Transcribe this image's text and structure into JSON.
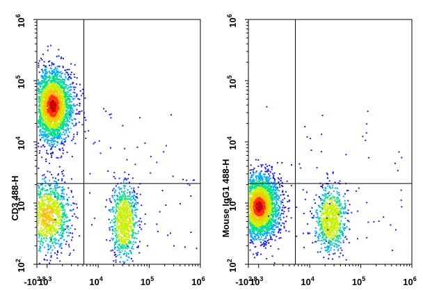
{
  "chart_data": [
    {
      "type": "scatter",
      "plot_style": "flow-cytometry density dot plot",
      "xlabel": "",
      "ylabel": "CD3 488-H",
      "x_axis": {
        "scale": "log",
        "range_log10": [
          2.8,
          6.0
        ],
        "ticks": [
          {
            "v": 2.8,
            "base": "-10",
            "exp": "2.8"
          },
          {
            "v": 3,
            "base": "10",
            "exp": "3"
          },
          {
            "v": 4,
            "base": "10",
            "exp": "4"
          },
          {
            "v": 5,
            "base": "10",
            "exp": "5"
          },
          {
            "v": 6,
            "base": "10",
            "exp": "6"
          }
        ]
      },
      "y_axis": {
        "scale": "log",
        "range_log10": [
          2.0,
          6.0
        ],
        "ticks": [
          {
            "v": 2,
            "base": "10",
            "exp": "2"
          },
          {
            "v": 3,
            "base": "10",
            "exp": "3"
          },
          {
            "v": 4,
            "base": "10",
            "exp": "4"
          },
          {
            "v": 5,
            "base": "10",
            "exp": "5"
          },
          {
            "v": 6,
            "base": "10",
            "exp": "6"
          }
        ]
      },
      "gates": {
        "x_log10": 3.72,
        "y_log10": 3.32
      },
      "populations": [
        {
          "quadrant": "upper-left",
          "center_log10": [
            3.1,
            4.6
          ],
          "spread_log10": [
            0.2,
            0.3
          ],
          "relative_size": 1.0
        },
        {
          "quadrant": "lower-left",
          "center_log10": [
            3.0,
            2.8
          ],
          "spread_log10": [
            0.22,
            0.28
          ],
          "relative_size": 0.42
        },
        {
          "quadrant": "lower-right",
          "center_log10": [
            4.5,
            2.7
          ],
          "spread_log10": [
            0.13,
            0.3
          ],
          "relative_size": 0.3
        }
      ]
    },
    {
      "type": "scatter",
      "plot_style": "flow-cytometry density dot plot",
      "xlabel": "",
      "ylabel": "Mouse IgG1 488-H",
      "x_axis": {
        "scale": "log",
        "range_log10": [
          2.8,
          6.0
        ],
        "ticks": [
          {
            "v": 2.8,
            "base": "-10",
            "exp": "2.8"
          },
          {
            "v": 3,
            "base": "10",
            "exp": "3"
          },
          {
            "v": 4,
            "base": "10",
            "exp": "4"
          },
          {
            "v": 5,
            "base": "10",
            "exp": "5"
          },
          {
            "v": 6,
            "base": "10",
            "exp": "6"
          }
        ]
      },
      "y_axis": {
        "scale": "log",
        "range_log10": [
          2.0,
          6.0
        ],
        "ticks": [
          {
            "v": 2,
            "base": "10",
            "exp": "2"
          },
          {
            "v": 3,
            "base": "10",
            "exp": "3"
          },
          {
            "v": 4,
            "base": "10",
            "exp": "4"
          },
          {
            "v": 5,
            "base": "10",
            "exp": "5"
          },
          {
            "v": 6,
            "base": "10",
            "exp": "6"
          }
        ]
      },
      "gates": {
        "x_log10": 3.72,
        "y_log10": 3.32
      },
      "populations": [
        {
          "quadrant": "lower-left",
          "center_log10": [
            3.0,
            2.95
          ],
          "spread_log10": [
            0.2,
            0.26
          ],
          "relative_size": 1.0
        },
        {
          "quadrant": "lower-right",
          "center_log10": [
            4.4,
            2.75
          ],
          "spread_log10": [
            0.15,
            0.26
          ],
          "relative_size": 0.3
        }
      ]
    }
  ],
  "density_colors": [
    "#1a1aff",
    "#00aaff",
    "#00e08a",
    "#c8f000",
    "#ffc000",
    "#ff3300",
    "#cc0000"
  ]
}
